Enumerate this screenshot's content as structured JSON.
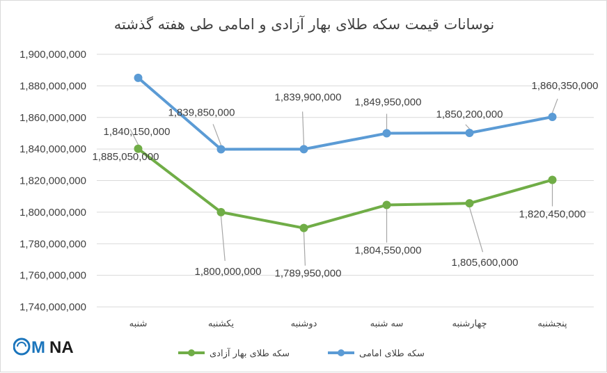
{
  "chart_data": {
    "type": "line",
    "title": "نوسانات قیمت سکه طلای بهار آزادی و امامی طی هفته گذشته",
    "xlabel": "",
    "ylabel": "",
    "categories": [
      "شنبه",
      "یکشنبه",
      "دوشنبه",
      "سه شنبه",
      "چهارشنبه",
      "پنجشنبه"
    ],
    "ylim": [
      1740000000,
      1900000000
    ],
    "ytick_step": 20000000,
    "yticks": [
      "1,740,000,000",
      "1,760,000,000",
      "1,780,000,000",
      "1,800,000,000",
      "1,820,000,000",
      "1,840,000,000",
      "1,860,000,000",
      "1,880,000,000",
      "1,900,000,000"
    ],
    "grid": true,
    "legend_position": "bottom",
    "series": [
      {
        "name": "سکه طلای بهار آزادی",
        "color": "#70ad47",
        "values": [
          1840150000,
          1800000000,
          1789950000,
          1804550000,
          1805600000,
          1820450000
        ],
        "labels": [
          "1,840,150,000",
          "1,800,000,000",
          "1,789,950,000",
          "1,804,550,000",
          "1,805,600,000",
          "1,820,450,000"
        ]
      },
      {
        "name": "سکه طلای امامی",
        "color": "#5b9bd5",
        "values": [
          1885050000,
          1839850000,
          1839900000,
          1849950000,
          1850200000,
          1860350000
        ],
        "labels": [
          "1,885,050,000",
          "1,839,850,000",
          "1,839,900,000",
          "1,849,950,000",
          "1,850,200,000",
          "1,860,350,000"
        ]
      }
    ]
  },
  "logo": {
    "text": "IMNA",
    "icon": "imna-logo-icon",
    "colors": [
      "#1b75bc",
      "#1a1a1a"
    ]
  }
}
